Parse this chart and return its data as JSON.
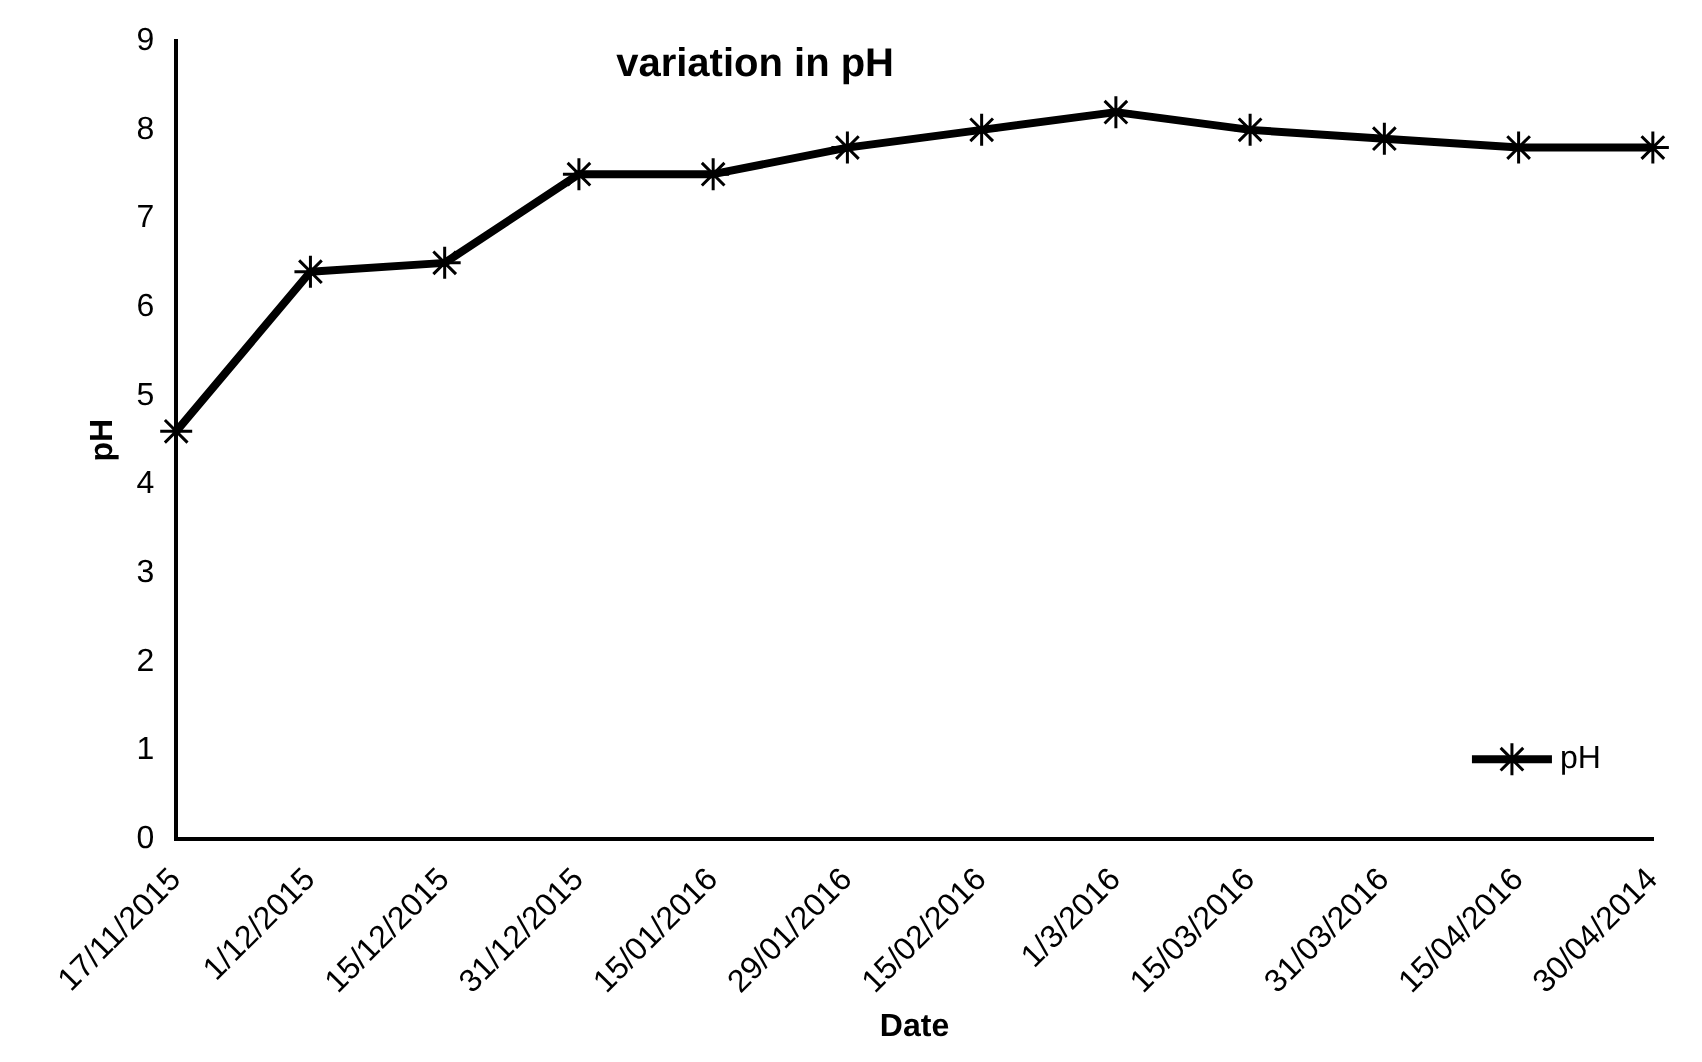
{
  "chart_data": {
    "type": "line",
    "title": "variation in pH",
    "xlabel": "Date",
    "ylabel": "pH",
    "categories": [
      "17/11/2015",
      "1/12/2015",
      "15/12/2015",
      "31/12/2015",
      "15/01/2016",
      "29/01/2016",
      "15/02/2016",
      "1/3/2016",
      "15/03/2016",
      "31/03/2016",
      "15/04/2016",
      "30/04/2014"
    ],
    "series": [
      {
        "name": "pH",
        "color": "#000000",
        "values": [
          4.6,
          6.4,
          6.5,
          7.5,
          7.5,
          7.8,
          8.0,
          8.2,
          8.0,
          7.9,
          7.8,
          7.8
        ]
      }
    ],
    "ylim": [
      0,
      9
    ],
    "yticks": [
      0,
      1,
      2,
      3,
      4,
      5,
      6,
      7,
      8,
      9
    ],
    "grid": false,
    "legend": "bottom right",
    "marker": "cross",
    "line_style": "solid"
  }
}
